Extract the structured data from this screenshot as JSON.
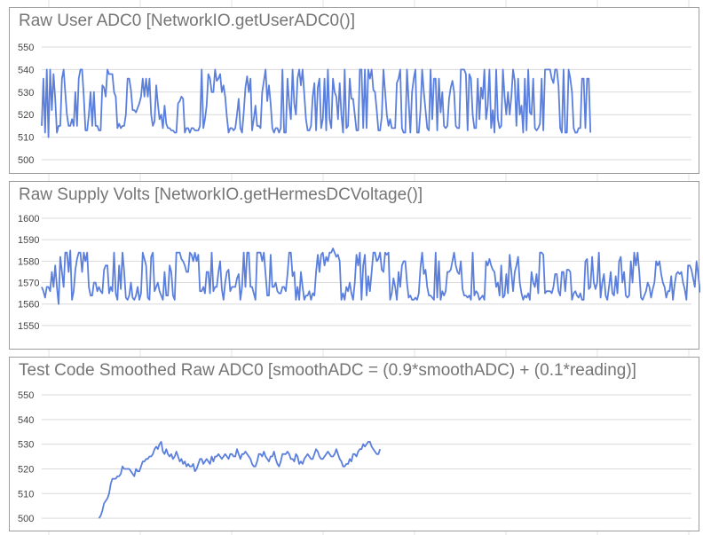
{
  "chart_data": [
    {
      "type": "line",
      "title": "Raw User ADC0 [NetworkIO.getUserADC0()]",
      "xlabel": "",
      "ylabel": "",
      "ylim": [
        500,
        550
      ],
      "yticks": [
        "500",
        "510",
        "520",
        "530",
        "540",
        "550"
      ],
      "grid": true,
      "legend": "none",
      "series": [
        {
          "color": "#5b7fdd",
          "values": [
            515,
            536,
            512,
            540,
            510,
            540,
            522,
            538,
            527,
            512,
            515,
            515,
            536,
            540,
            530,
            520,
            515,
            515,
            518,
            515,
            530,
            515,
            536,
            540,
            540,
            528,
            513,
            513,
            520,
            530,
            515,
            530,
            515,
            515,
            513,
            513,
            533,
            532,
            528,
            540,
            538,
            538,
            538,
            530,
            528,
            514,
            516,
            514,
            515,
            515,
            520,
            536,
            536,
            531,
            522,
            522,
            521,
            523,
            525,
            528,
            536,
            528,
            536,
            528,
            536,
            520,
            515,
            517,
            533,
            525,
            518,
            520,
            514,
            524,
            516,
            514,
            514,
            513,
            513,
            512,
            512,
            525,
            526,
            528,
            527,
            512,
            514,
            514,
            512,
            514,
            514,
            513,
            513,
            513,
            515,
            540,
            514,
            518,
            524,
            538,
            536,
            530,
            530,
            540,
            535,
            536,
            538,
            530,
            533,
            528,
            519,
            512,
            514,
            514,
            513,
            514,
            520,
            527,
            514,
            512,
            521,
            532,
            537,
            530,
            536,
            513,
            518,
            524,
            515,
            515,
            514,
            530,
            535,
            540,
            526,
            533,
            525,
            514,
            512,
            514,
            514,
            512,
            514,
            540,
            512,
            512,
            536,
            525,
            518,
            540,
            525,
            520,
            536,
            540,
            533,
            540,
            529,
            518,
            513,
            513,
            515,
            528,
            534,
            513,
            532,
            536,
            514,
            518,
            536,
            513,
            540,
            518,
            514,
            536,
            530,
            528,
            518,
            534,
            520,
            512,
            540,
            514,
            515,
            536,
            527,
            527,
            520,
            513,
            513,
            540,
            540,
            514,
            540,
            514,
            540,
            536,
            540,
            531,
            530,
            522,
            513,
            513,
            519,
            540,
            530,
            520,
            515,
            518,
            514,
            514,
            514,
            534,
            536,
            540,
            514,
            512,
            512,
            540,
            526,
            512,
            530,
            536,
            540,
            512,
            512,
            522,
            540,
            530,
            522,
            514,
            513,
            540,
            518,
            536,
            536,
            513,
            536,
            521,
            530,
            515,
            514,
            515,
            527,
            532,
            535,
            530,
            515,
            514,
            514,
            540,
            540,
            540,
            538,
            513,
            538,
            536,
            520,
            514,
            514,
            536,
            518,
            532,
            527,
            540,
            518,
            524,
            540,
            514,
            522,
            512,
            540,
            518,
            514,
            515,
            540,
            528,
            520,
            530,
            520,
            528,
            540,
            535,
            515,
            536,
            520,
            524,
            512,
            536,
            513,
            540,
            521,
            520,
            536,
            514,
            513,
            514,
            516,
            536,
            513,
            540,
            540,
            540,
            540,
            536,
            534,
            540,
            540,
            533,
            514,
            512,
            540,
            512,
            512,
            540,
            536,
            530,
            514,
            512,
            512,
            514,
            514,
            536,
            536,
            514,
            536,
            536,
            512
          ]
        }
      ]
    },
    {
      "type": "line",
      "title": "Raw Supply Volts [NetworkIO.getHermesDCVoltage()]",
      "xlabel": "",
      "ylabel": "",
      "ylim": [
        1545,
        1600
      ],
      "yticks": [
        "1550",
        "1560",
        "1570",
        "1580",
        "1590",
        "1600"
      ],
      "grid": true,
      "legend": "none",
      "series": [
        {
          "color": "#5b7fdd",
          "values": [
            1568,
            1566,
            1563,
            1568,
            1568,
            1566,
            1575,
            1568,
            1578,
            1568,
            1560,
            1582,
            1575,
            1568,
            1584,
            1584,
            1575,
            1585,
            1562,
            1566,
            1576,
            1581,
            1584,
            1584,
            1575,
            1584,
            1580,
            1584,
            1568,
            1564,
            1564,
            1570,
            1570,
            1566,
            1568,
            1566,
            1565,
            1576,
            1578,
            1578,
            1565,
            1568,
            1566,
            1584,
            1565,
            1562,
            1578,
            1567,
            1584,
            1575,
            1563,
            1562,
            1564,
            1570,
            1563,
            1562,
            1564,
            1568,
            1562,
            1565,
            1584,
            1581,
            1578,
            1563,
            1562,
            1582,
            1584,
            1566,
            1568,
            1570,
            1566,
            1564,
            1562,
            1575,
            1564,
            1564,
            1578,
            1575,
            1564,
            1562,
            1584,
            1584,
            1584,
            1581,
            1580,
            1578,
            1575,
            1575,
            1584,
            1583,
            1580,
            1584,
            1580,
            1583,
            1566,
            1566,
            1568,
            1565,
            1575,
            1575,
            1565,
            1584,
            1566,
            1568,
            1568,
            1575,
            1580,
            1567,
            1562,
            1570,
            1575,
            1576,
            1566,
            1568,
            1568,
            1568,
            1572,
            1574,
            1562,
            1568,
            1584,
            1568,
            1584,
            1584,
            1568,
            1568,
            1565,
            1562,
            1584,
            1584,
            1584,
            1580,
            1584,
            1574,
            1564,
            1564,
            1583,
            1568,
            1568,
            1570,
            1566,
            1565,
            1565,
            1568,
            1568,
            1566,
            1574,
            1584,
            1584,
            1573,
            1575,
            1562,
            1568,
            1562,
            1575,
            1568,
            1562,
            1564,
            1564,
            1566,
            1562,
            1565,
            1564,
            1575,
            1583,
            1575,
            1583,
            1584,
            1578,
            1582,
            1580,
            1584,
            1584,
            1586,
            1584,
            1582,
            1583,
            1580,
            1562,
            1565,
            1562,
            1568,
            1566,
            1570,
            1565,
            1562,
            1570,
            1583,
            1578,
            1584,
            1562,
            1578,
            1583,
            1564,
            1573,
            1566,
            1575,
            1584,
            1584,
            1580,
            1581,
            1584,
            1576,
            1575,
            1584,
            1583,
            1584,
            1562,
            1565,
            1572,
            1568,
            1562,
            1575,
            1568,
            1578,
            1580,
            1580,
            1570,
            1563,
            1564,
            1562,
            1562,
            1563,
            1562,
            1565,
            1577,
            1584,
            1574,
            1576,
            1568,
            1564,
            1564,
            1563,
            1562,
            1584,
            1563,
            1580,
            1562,
            1566,
            1564,
            1566,
            1575,
            1575,
            1576,
            1580,
            1584,
            1578,
            1575,
            1574,
            1580,
            1567,
            1564,
            1564,
            1563,
            1564,
            1562,
            1584,
            1564,
            1566,
            1565,
            1562,
            1563,
            1564,
            1562,
            1580,
            1578,
            1581,
            1578,
            1576,
            1575,
            1568,
            1570,
            1564,
            1578,
            1563,
            1564,
            1574,
            1565,
            1583,
            1575,
            1566,
            1575,
            1578,
            1582,
            1570,
            1565,
            1562,
            1564,
            1563,
            1565,
            1562,
            1575,
            1570,
            1568,
            1574,
            1565,
            1584,
            1584,
            1583,
            1565,
            1566,
            1566,
            1566,
            1565,
            1568,
            1574,
            1574,
            1566,
            1564,
            1575,
            1575,
            1566,
            1576,
            1576,
            1575,
            1562,
            1565,
            1566,
            1564,
            1563,
            1565,
            1562,
            1562,
            1580,
            1581,
            1567,
            1568,
            1582,
            1570,
            1567,
            1570,
            1584,
            1563,
            1570,
            1574,
            1564,
            1562,
            1568,
            1575,
            1565,
            1564,
            1573,
            1565,
            1580,
            1582,
            1570,
            1575,
            1564,
            1563,
            1564,
            1580,
            1570,
            1584,
            1578,
            1584,
            1575,
            1563,
            1562,
            1564,
            1566,
            1570,
            1568,
            1563,
            1567,
            1570,
            1580,
            1578,
            1580,
            1574,
            1570,
            1568,
            1563,
            1566,
            1566,
            1573,
            1562,
            1569,
            1574,
            1575,
            1574,
            1575,
            1570,
            1567,
            1562,
            1578,
            1578,
            1576,
            1572,
            1568,
            1580,
            1574,
            1566,
            1565,
            1563,
            1564,
            1570,
            1573,
            1575,
            1578,
            1578,
            1566,
            1565,
            1564,
            1563,
            1562,
            1568,
            1570,
            1578,
            1578,
            1574,
            1574
          ]
        }
      ]
    },
    {
      "type": "line",
      "title": "Test Code Smoothed Raw ADC0 [smoothADC = (0.9*smoothADC) + (0.1*reading)]",
      "xlabel": "",
      "ylabel": "",
      "ylim": [
        495,
        550
      ],
      "yticks": [
        "500",
        "510",
        "520",
        "530",
        "540",
        "550"
      ],
      "grid": true,
      "legend": "none",
      "series": [
        {
          "color": "#5b7fdd",
          "x_start": 34,
          "values": [
            500,
            501,
            503,
            506,
            507,
            508,
            510,
            514,
            516,
            516,
            516,
            517,
            517,
            518,
            521,
            520,
            520,
            520,
            520,
            519,
            518,
            517,
            520,
            519,
            519,
            521,
            523,
            523,
            524,
            524,
            525,
            525,
            526,
            528,
            529,
            528,
            530,
            531,
            527,
            526,
            528,
            526,
            525,
            526,
            524,
            525,
            527,
            525,
            523,
            524,
            522,
            523,
            521,
            522,
            521,
            521,
            522,
            519,
            520,
            522,
            524,
            524,
            522,
            523,
            524,
            523,
            522,
            525,
            523,
            525,
            525,
            526,
            525,
            524,
            525,
            526,
            525,
            524,
            526,
            526,
            525,
            525,
            528,
            526,
            524,
            526,
            526,
            527,
            526,
            525,
            524,
            522,
            521,
            521,
            523,
            526,
            526,
            525,
            527,
            525,
            524,
            523,
            525,
            525,
            527,
            524,
            522,
            521,
            523,
            526,
            526,
            526,
            527,
            526,
            524,
            524,
            523,
            526,
            525,
            522,
            523,
            522,
            524,
            525,
            526,
            525,
            524,
            524,
            526,
            528,
            527,
            525,
            524,
            524,
            525,
            526,
            527,
            526,
            525,
            525,
            526,
            528,
            526,
            524,
            523,
            521,
            521,
            522,
            522,
            524,
            523,
            526,
            526,
            525,
            527,
            528,
            528,
            530,
            529,
            530,
            531,
            531,
            529,
            528,
            527,
            526,
            526,
            528
          ]
        }
      ]
    }
  ]
}
